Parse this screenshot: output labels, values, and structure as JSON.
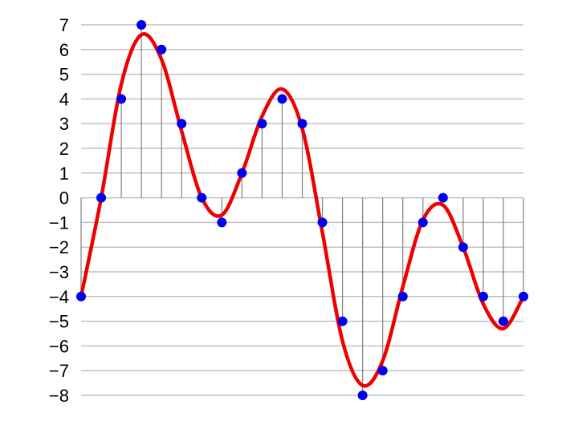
{
  "chart_data": {
    "type": "line",
    "title": "",
    "xlabel": "",
    "ylabel": "",
    "ylim": [
      -8,
      7
    ],
    "yticks": [
      7,
      6,
      5,
      4,
      3,
      2,
      1,
      0,
      -1,
      -2,
      -3,
      -4,
      -5,
      -6,
      -7,
      -8
    ],
    "ytick_labels": [
      "7",
      "6",
      "5",
      "4",
      "3",
      "2",
      "1",
      "0",
      "−1",
      "−2",
      "−3",
      "−4",
      "−5",
      "−6",
      "−7",
      "−8"
    ],
    "grid": true,
    "x": [
      0,
      1,
      2,
      3,
      4,
      5,
      6,
      7,
      8,
      9,
      10,
      11,
      12,
      13,
      14,
      15,
      16,
      17,
      18,
      19,
      20,
      21,
      22
    ],
    "series": [
      {
        "kind": "samples",
        "color": "#0000ee",
        "values": [
          -4,
          0,
          4,
          7,
          6,
          3,
          0,
          -1,
          1,
          3,
          4,
          3,
          -1,
          -5,
          -8,
          -7,
          -4,
          -1,
          0,
          -2,
          -4,
          -5,
          -4
        ]
      },
      {
        "kind": "continuous",
        "color": "#ee0000",
        "values": [
          -4,
          0,
          4.6,
          6.6,
          5.6,
          2.7,
          0,
          -0.7,
          1,
          3.3,
          4.4,
          2.8,
          -1.4,
          -5.8,
          -7.6,
          -6.6,
          -3.6,
          -0.9,
          -0.3,
          -2,
          -4.3,
          -5.3,
          -4
        ]
      }
    ],
    "colors": {
      "grid": "#c0c0c0",
      "stem": "#808080",
      "sample": "#0000ee",
      "curve": "#ee0000"
    }
  }
}
